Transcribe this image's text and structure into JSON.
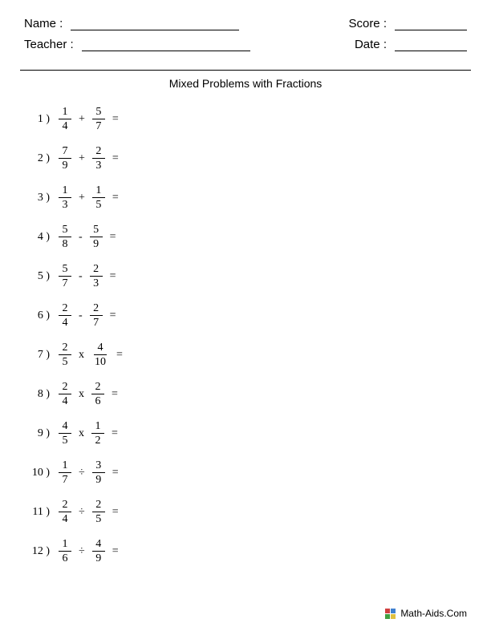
{
  "header": {
    "name_label": "Name :",
    "teacher_label": "Teacher :",
    "score_label": "Score :",
    "date_label": "Date :"
  },
  "title": "Mixed Problems with Fractions",
  "problems": [
    {
      "num": "1 )",
      "n1": "1",
      "d1": "4",
      "op": "+",
      "n2": "5",
      "d2": "7"
    },
    {
      "num": "2 )",
      "n1": "7",
      "d1": "9",
      "op": "+",
      "n2": "2",
      "d2": "3"
    },
    {
      "num": "3 )",
      "n1": "1",
      "d1": "3",
      "op": "+",
      "n2": "1",
      "d2": "5"
    },
    {
      "num": "4 )",
      "n1": "5",
      "d1": "8",
      "op": "-",
      "n2": "5",
      "d2": "9"
    },
    {
      "num": "5 )",
      "n1": "5",
      "d1": "7",
      "op": "-",
      "n2": "2",
      "d2": "3"
    },
    {
      "num": "6 )",
      "n1": "2",
      "d1": "4",
      "op": "-",
      "n2": "2",
      "d2": "7"
    },
    {
      "num": "7 )",
      "n1": "2",
      "d1": "5",
      "op": "x",
      "n2": "4",
      "d2": "10"
    },
    {
      "num": "8 )",
      "n1": "2",
      "d1": "4",
      "op": "x",
      "n2": "2",
      "d2": "6"
    },
    {
      "num": "9 )",
      "n1": "4",
      "d1": "5",
      "op": "x",
      "n2": "1",
      "d2": "2"
    },
    {
      "num": "10 )",
      "n1": "1",
      "d1": "7",
      "op": "÷",
      "n2": "3",
      "d2": "9"
    },
    {
      "num": "11 )",
      "n1": "2",
      "d1": "4",
      "op": "÷",
      "n2": "2",
      "d2": "5"
    },
    {
      "num": "12 )",
      "n1": "1",
      "d1": "6",
      "op": "÷",
      "n2": "4",
      "d2": "9"
    }
  ],
  "equals": "=",
  "footer": {
    "text": "Math-Aids.Com"
  }
}
